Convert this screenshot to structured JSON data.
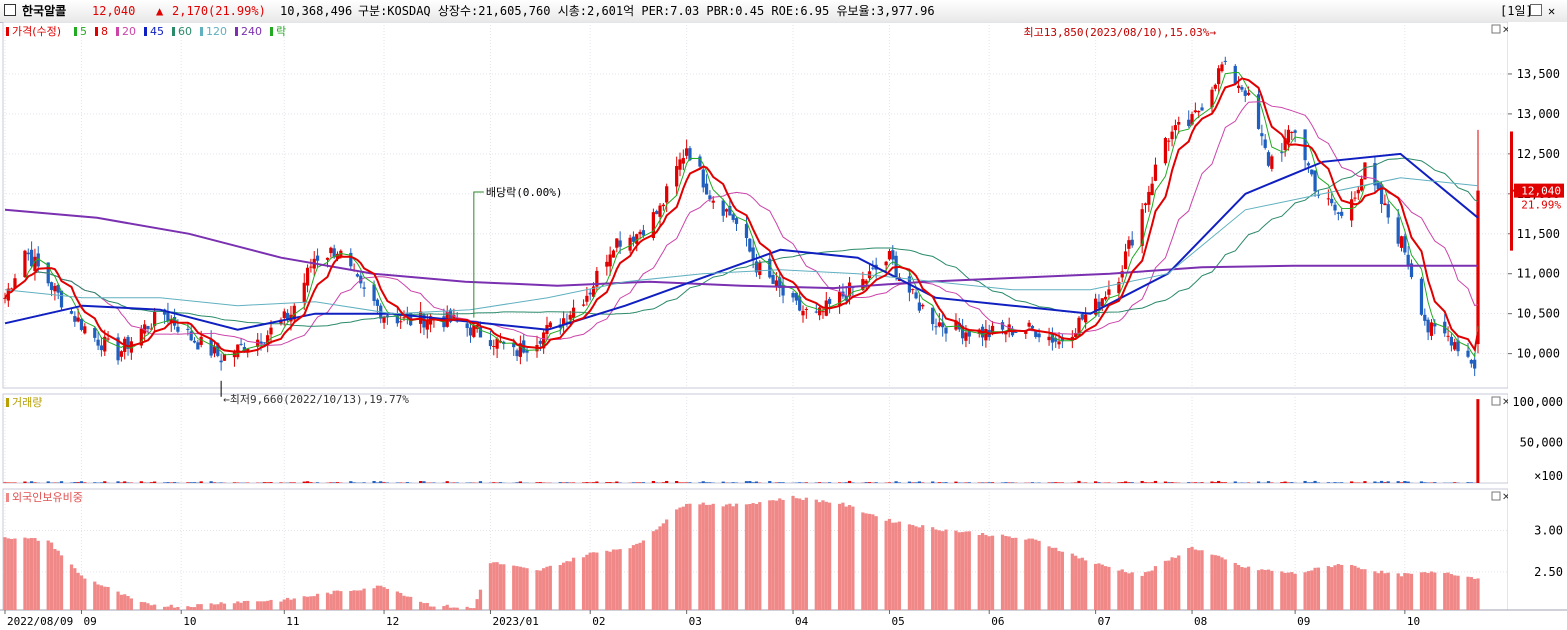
{
  "header": {
    "name": "한국알콜",
    "price": "12,040",
    "change_mark": "▲",
    "change": "2,170",
    "change_pct": "(21.99%)",
    "volume": "10,368,496",
    "info": "구분:KOSDAQ 상장수:21,605,760 시총:2,601억 PER:7.03 PBR:0.45 ROE:6.95 유보율:3,977.96",
    "period": "[1일]"
  },
  "colors": {
    "up": "#e00000",
    "down": "#1f5fbf",
    "ma5": "#22aa22",
    "ma8": "#e00000",
    "ma20": "#cc44aa",
    "ma45": "#1020c0",
    "ma60": "#2a8a6a",
    "ma120": "#60b0c0",
    "ma240": "#7a30b0",
    "foreign": "#f08888"
  },
  "chart_data": [
    {
      "type": "candlestick",
      "title": "가격(수정)",
      "legend": [
        {
          "label": "가격(수정)",
          "color": "#e00000"
        },
        {
          "label": "5",
          "color": "#22aa22"
        },
        {
          "label": "8",
          "color": "#e00000"
        },
        {
          "label": "20",
          "color": "#cc44aa"
        },
        {
          "label": "45",
          "color": "#1020c0"
        },
        {
          "label": "60",
          "color": "#2a8a6a"
        },
        {
          "label": "120",
          "color": "#60b0c0"
        },
        {
          "label": "240",
          "color": "#7a30b0"
        },
        {
          "label": "락",
          "color": "#22aa22"
        }
      ],
      "y_ticks": [
        10000,
        10500,
        11000,
        11500,
        12000,
        12500,
        13000,
        13500
      ],
      "y_tick_labels": [
        "10,000",
        "10,500",
        "11,000",
        "11,500",
        "12,000",
        "12,500",
        "13,000",
        "13,500"
      ],
      "ylim": [
        9570,
        14150
      ],
      "x_labels": [
        "2022/08/09",
        "09",
        "10",
        "11",
        "12",
        "2023/01",
        "02",
        "03",
        "04",
        "05",
        "06",
        "07",
        "08",
        "09",
        "10"
      ],
      "x_dates": [
        "2022-08-09",
        "2022-09-01",
        "2022-10-01",
        "2022-11-01",
        "2022-12-01",
        "2023-01-02",
        "2023-02-01",
        "2023-03-02",
        "2023-04-03",
        "2023-05-02",
        "2023-06-01",
        "2023-07-03",
        "2023-08-01",
        "2023-09-01",
        "2023-10-04"
      ],
      "last_date": "2023-10-26",
      "last_price_label": "12,040",
      "last_pct_label": "21.99%",
      "annotations": {
        "high": "최고13,850(2023/08/10),15.03%",
        "low": "최저9,660(2022/10/13),19.77%",
        "dividend": "배당락(0.00%)"
      },
      "high": {
        "date": "2023-08-10",
        "value": 13850
      },
      "low": {
        "date": "2022-10-13",
        "value": 9660
      },
      "dividend_date": "2022-12-28",
      "close_path": [
        [
          "2022-08-09",
          10700
        ],
        [
          "2022-08-15",
          11300
        ],
        [
          "2022-08-22",
          10900
        ],
        [
          "2022-08-29",
          10500
        ],
        [
          "2022-09-05",
          10200
        ],
        [
          "2022-09-12",
          10000
        ],
        [
          "2022-09-19",
          10300
        ],
        [
          "2022-09-26",
          10500
        ],
        [
          "2022-10-04",
          10200
        ],
        [
          "2022-10-13",
          9950
        ],
        [
          "2022-10-20",
          10100
        ],
        [
          "2022-10-27",
          10250
        ],
        [
          "2022-11-03",
          10500
        ],
        [
          "2022-11-10",
          11200
        ],
        [
          "2022-11-17",
          11300
        ],
        [
          "2022-11-24",
          10800
        ],
        [
          "2022-12-01",
          10500
        ],
        [
          "2022-12-08",
          10400
        ],
        [
          "2022-12-15",
          10450
        ],
        [
          "2022-12-22",
          10400
        ],
        [
          "2023-01-02",
          10200
        ],
        [
          "2023-01-09",
          10000
        ],
        [
          "2023-01-16",
          10200
        ],
        [
          "2023-01-23",
          10400
        ],
        [
          "2023-02-01",
          10800
        ],
        [
          "2023-02-08",
          11400
        ],
        [
          "2023-02-15",
          11500
        ],
        [
          "2023-02-22",
          11800
        ],
        [
          "2023-03-02",
          12600
        ],
        [
          "2023-03-09",
          12000
        ],
        [
          "2023-03-16",
          11700
        ],
        [
          "2023-03-23",
          11100
        ],
        [
          "2023-04-03",
          10600
        ],
        [
          "2023-04-10",
          10450
        ],
        [
          "2023-04-17",
          10700
        ],
        [
          "2023-04-24",
          10900
        ],
        [
          "2023-05-02",
          11200
        ],
        [
          "2023-05-09",
          10700
        ],
        [
          "2023-05-16",
          10400
        ],
        [
          "2023-05-23",
          10300
        ],
        [
          "2023-06-01",
          10250
        ],
        [
          "2023-06-08",
          10300
        ],
        [
          "2023-06-15",
          10300
        ],
        [
          "2023-06-22",
          10150
        ],
        [
          "2023-07-03",
          10600
        ],
        [
          "2023-07-10",
          11000
        ],
        [
          "2023-07-17",
          11800
        ],
        [
          "2023-07-24",
          12700
        ],
        [
          "2023-08-01",
          12900
        ],
        [
          "2023-08-10",
          13600
        ],
        [
          "2023-08-17",
          13300
        ],
        [
          "2023-08-24",
          12400
        ],
        [
          "2023-09-01",
          12800
        ],
        [
          "2023-09-08",
          12000
        ],
        [
          "2023-09-15",
          11700
        ],
        [
          "2023-09-22",
          12300
        ],
        [
          "2023-10-04",
          11300
        ],
        [
          "2023-10-11",
          10300
        ],
        [
          "2023-10-18",
          10200
        ],
        [
          "2023-10-25",
          9870
        ],
        [
          "2023-10-26",
          12040
        ]
      ],
      "moving_averages": [
        {
          "name": "240",
          "values": [
            11800,
            11700,
            11500,
            11200,
            11000,
            10900,
            10850,
            10900,
            10850,
            10820,
            10900,
            10950,
            11000,
            11080,
            11100,
            11100,
            11100
          ]
        },
        {
          "name": "45",
          "values": [
            10380,
            10600,
            10550,
            10300,
            10500,
            10500,
            10400,
            10300,
            10600,
            10950,
            11300,
            11200,
            10700,
            10600,
            10500,
            11000,
            12000,
            12400,
            12500,
            11700
          ]
        },
        {
          "name": "120",
          "values": [
            10800,
            10700,
            10700,
            10600,
            10650,
            10500,
            10550,
            10700,
            10900,
            11000,
            11050,
            11000,
            10900,
            10800,
            10800,
            11000,
            11800,
            12000,
            12200,
            12100
          ]
        }
      ],
      "volume_panel": {
        "legend": "거래량",
        "y_tick_labels": [
          "100,000",
          "50,000"
        ],
        "unit_label": "×100",
        "ylim": [
          0,
          110000
        ],
        "last_value": 103685
      },
      "foreign_panel": {
        "legend": "외국인보유비중",
        "y_ticks": [
          2.5,
          3.0
        ],
        "y_tick_labels": [
          "2.50",
          "3.00"
        ],
        "ylim": [
          2.04,
          3.5
        ],
        "weekly": [
          [
            "2022-08-09",
            2.92
          ],
          [
            "2022-08-22",
            2.88
          ],
          [
            "2022-09-01",
            2.45
          ],
          [
            "2022-09-19",
            2.12
          ],
          [
            "2022-10-01",
            2.08
          ],
          [
            "2022-10-17",
            2.14
          ],
          [
            "2022-11-01",
            2.16
          ],
          [
            "2022-11-17",
            2.26
          ],
          [
            "2022-12-01",
            2.33
          ],
          [
            "2022-12-15",
            2.1
          ],
          [
            "2022-12-28",
            2.06
          ],
          [
            "2023-01-02",
            2.62
          ],
          [
            "2023-01-16",
            2.51
          ],
          [
            "2023-02-01",
            2.72
          ],
          [
            "2023-02-15",
            2.82
          ],
          [
            "2023-03-02",
            3.34
          ],
          [
            "2023-03-16",
            3.3
          ],
          [
            "2023-04-03",
            3.4
          ],
          [
            "2023-04-17",
            3.33
          ],
          [
            "2023-05-02",
            3.12
          ],
          [
            "2023-05-16",
            3.02
          ],
          [
            "2023-06-01",
            2.95
          ],
          [
            "2023-06-15",
            2.88
          ],
          [
            "2023-07-03",
            2.6
          ],
          [
            "2023-07-17",
            2.46
          ],
          [
            "2023-08-01",
            2.8
          ],
          [
            "2023-08-17",
            2.55
          ],
          [
            "2023-09-01",
            2.48
          ],
          [
            "2023-09-15",
            2.6
          ],
          [
            "2023-10-01",
            2.46
          ],
          [
            "2023-10-16",
            2.5
          ],
          [
            "2023-10-26",
            2.42
          ]
        ]
      }
    }
  ]
}
